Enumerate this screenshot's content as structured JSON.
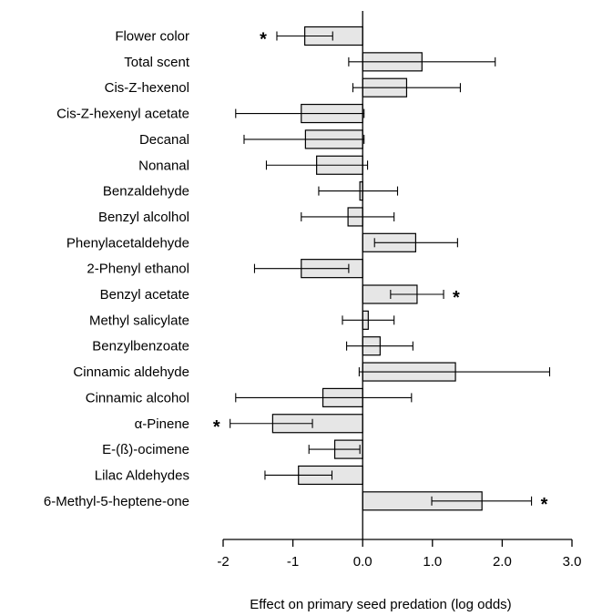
{
  "chart_data": {
    "type": "bar",
    "orientation": "horizontal",
    "xlabel": "Effect on primary seed predation (log odds)",
    "ylabel": "",
    "title": "",
    "xlim": [
      -2,
      3
    ],
    "x_tick_values": [
      -2,
      -1,
      0,
      1,
      2,
      3
    ],
    "x_tick_labels": [
      "-2",
      "-1",
      "0.0",
      "1.0",
      "2.0",
      "3.0"
    ],
    "bar_color": "#e6e6e6",
    "grid": false,
    "categories": [
      "Flower color",
      "Total scent",
      "Cis-Z-hexenol",
      "Cis-Z-hexenyl acetate",
      "Decanal",
      "Nonanal",
      "Benzaldehyde",
      "Benzyl alcolhol",
      "Phenylacetaldehyde",
      "2-Phenyl ethanol",
      "Benzyl acetate",
      "Methyl salicylate",
      "Benzylbenzoate",
      "Cinnamic aldehyde",
      "Cinnamic alcohol",
      "α-Pinene",
      "E-(ß)-ocimene",
      "Lilac Aldehydes",
      "6-Methyl-5-heptene-one"
    ],
    "values": [
      -0.83,
      0.85,
      0.63,
      -0.88,
      -0.82,
      -0.66,
      -0.04,
      -0.21,
      0.76,
      -0.88,
      0.78,
      0.08,
      0.25,
      1.33,
      -0.57,
      -1.29,
      -0.4,
      -0.92,
      1.71
    ],
    "error_low": [
      -1.23,
      -0.2,
      -0.14,
      -1.82,
      -1.7,
      -1.38,
      -0.63,
      -0.88,
      0.17,
      -1.55,
      0.4,
      -0.29,
      -0.23,
      -0.05,
      -1.82,
      -1.9,
      -0.77,
      -1.4,
      0.99
    ],
    "error_high": [
      -0.43,
      1.9,
      1.4,
      0.02,
      0.02,
      0.07,
      0.5,
      0.45,
      1.36,
      -0.2,
      1.16,
      0.45,
      0.72,
      2.68,
      0.7,
      -0.72,
      -0.04,
      -0.44,
      2.42
    ],
    "significance": [
      "*",
      "",
      "",
      "",
      "",
      "",
      "",
      "",
      "",
      "",
      "*",
      "",
      "",
      "",
      "",
      "*",
      "",
      "",
      "*"
    ]
  }
}
